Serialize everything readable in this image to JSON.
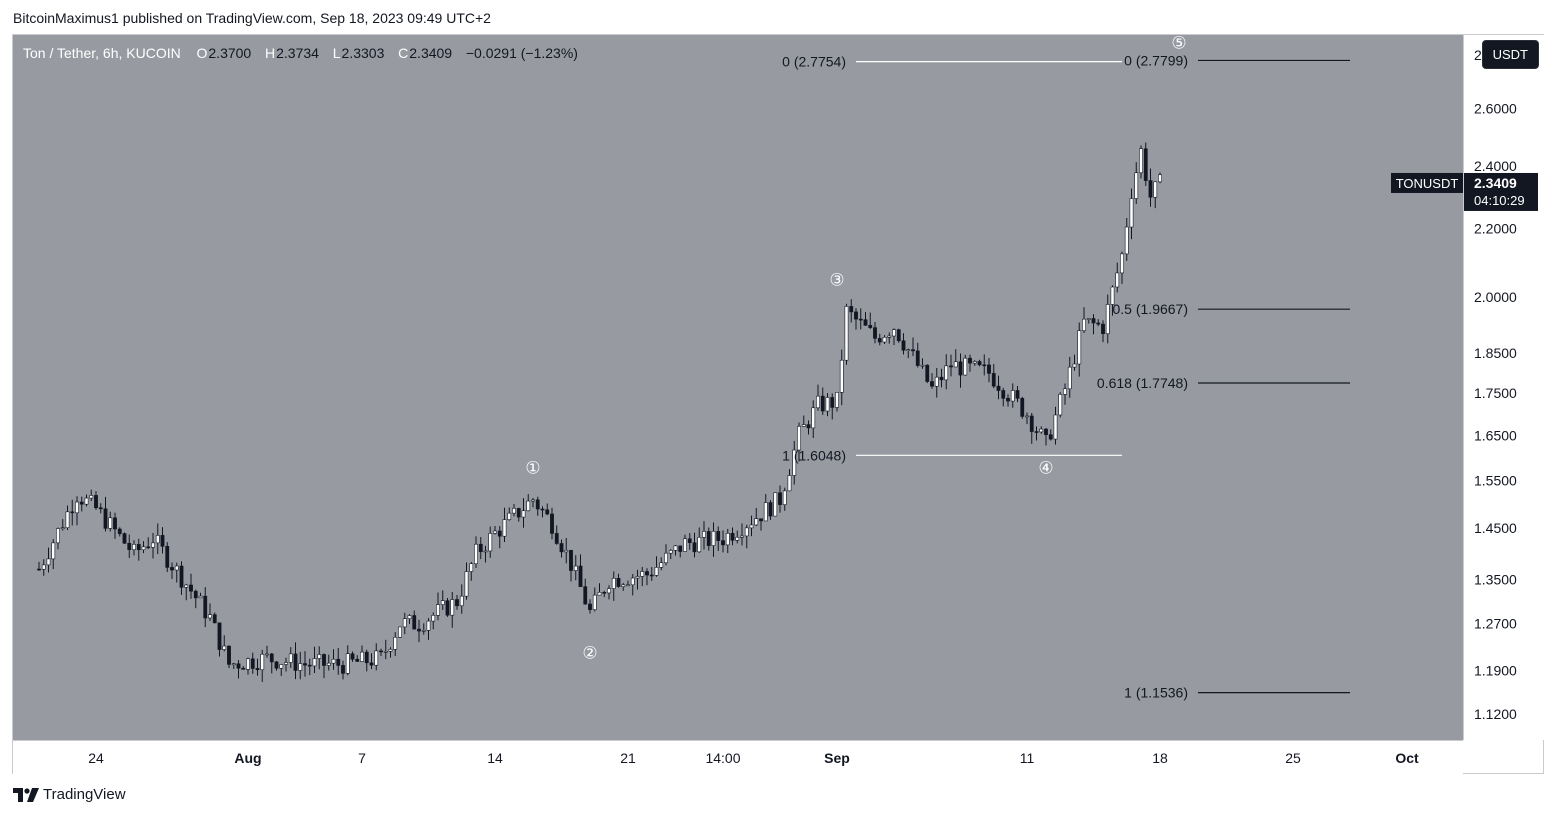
{
  "header": {
    "published_line": "BitcoinMaximus1 published on TradingView.com, Sep 18, 2023 09:49 UTC+2"
  },
  "legend": {
    "symbol": "Ton / Tether, 6h, KUCOIN",
    "o_label": "O",
    "o_value": "2.3700",
    "h_label": "H",
    "h_value": "2.3734",
    "l_label": "L",
    "l_value": "2.3303",
    "c_label": "C",
    "c_value": "2.3409",
    "change": "−0.0291 (−1.23%)"
  },
  "currency_button": "USDT",
  "price_badge": {
    "symbol": "TONUSDT",
    "price": "2.3409",
    "countdown": "04:10:29"
  },
  "footer": {
    "brand": "TradingView"
  },
  "colors": {
    "plot_bg": "#979aa1",
    "candle": "#ffffff",
    "candle_border": "#131722",
    "fib_line": "#131722",
    "label_dark": "#131722"
  },
  "chart_data": {
    "type": "candlestick",
    "ylabel_unit": "USDT",
    "y_scale": "log",
    "ylim": [
      1.08,
      2.88
    ],
    "y_ticks": [
      "2.8000",
      "2.6000",
      "2.4000",
      "2.2000",
      "2.0000",
      "1.8500",
      "1.7500",
      "1.6500",
      "1.5500",
      "1.4500",
      "1.3500",
      "1.2700",
      "1.1900",
      "1.1200"
    ],
    "x_ticks": [
      "24",
      "Aug",
      "7",
      "14",
      "21",
      "14:00",
      "Sep",
      "11",
      "18",
      "25",
      "Oct"
    ],
    "price_path": [
      {
        "date": "2023-07-21",
        "price": 1.37
      },
      {
        "date": "2023-07-23",
        "price": 1.52
      },
      {
        "date": "2023-07-24",
        "price": 1.49
      },
      {
        "date": "2023-07-26",
        "price": 1.4
      },
      {
        "date": "2023-07-27",
        "price": 1.43
      },
      {
        "date": "2023-07-29",
        "price": 1.33
      },
      {
        "date": "2023-07-30",
        "price": 1.28
      },
      {
        "date": "2023-07-31",
        "price": 1.2
      },
      {
        "date": "2023-08-02",
        "price": 1.21
      },
      {
        "date": "2023-08-04",
        "price": 1.2
      },
      {
        "date": "2023-08-06",
        "price": 1.2
      },
      {
        "date": "2023-08-08",
        "price": 1.21
      },
      {
        "date": "2023-08-09",
        "price": 1.27
      },
      {
        "date": "2023-08-10",
        "price": 1.27
      },
      {
        "date": "2023-08-12",
        "price": 1.31
      },
      {
        "date": "2023-08-13",
        "price": 1.4
      },
      {
        "date": "2023-08-14",
        "price": 1.44
      },
      {
        "date": "2023-08-16",
        "price": 1.51
      },
      {
        "date": "2023-08-17",
        "price": 1.46
      },
      {
        "date": "2023-08-18",
        "price": 1.38
      },
      {
        "date": "2023-08-19",
        "price": 1.29
      },
      {
        "date": "2023-08-20",
        "price": 1.35
      },
      {
        "date": "2023-08-22",
        "price": 1.36
      },
      {
        "date": "2023-08-24",
        "price": 1.42
      },
      {
        "date": "2023-08-26",
        "price": 1.43
      },
      {
        "date": "2023-08-28",
        "price": 1.48
      },
      {
        "date": "2023-08-29",
        "price": 1.51
      },
      {
        "date": "2023-08-30",
        "price": 1.65
      },
      {
        "date": "2023-08-31",
        "price": 1.72
      },
      {
        "date": "2023-09-01",
        "price": 1.73
      },
      {
        "date": "2023-09-01",
        "price": 1.96
      },
      {
        "date": "2023-09-03",
        "price": 1.89
      },
      {
        "date": "2023-09-04",
        "price": 1.92
      },
      {
        "date": "2023-09-06",
        "price": 1.76
      },
      {
        "date": "2023-09-07",
        "price": 1.82
      },
      {
        "date": "2023-09-09",
        "price": 1.8
      },
      {
        "date": "2023-09-11",
        "price": 1.7
      },
      {
        "date": "2023-09-12",
        "price": 1.63
      },
      {
        "date": "2023-09-13",
        "price": 1.76
      },
      {
        "date": "2023-09-14",
        "price": 1.93
      },
      {
        "date": "2023-09-15",
        "price": 1.92
      },
      {
        "date": "2023-09-16",
        "price": 2.12
      },
      {
        "date": "2023-09-16",
        "price": 2.32
      },
      {
        "date": "2023-09-17",
        "price": 2.45
      },
      {
        "date": "2023-09-17",
        "price": 2.3
      },
      {
        "date": "2023-09-18",
        "price": 2.34
      }
    ],
    "wave_labels": [
      {
        "label": "①",
        "date": "2023-08-16",
        "price": 1.578
      },
      {
        "label": "②",
        "date": "2023-08-19",
        "price": 1.22
      },
      {
        "label": "③",
        "date": "2023-09-01",
        "price": 2.05
      },
      {
        "label": "④",
        "date": "2023-09-12",
        "price": 1.578
      },
      {
        "label": "⑤",
        "date": "2023-09-19",
        "price": 2.85
      }
    ],
    "fib_sets": [
      {
        "levels": [
          {
            "label": "0 (2.7754)",
            "price": 2.7754
          },
          {
            "label": "1 (1.6048)",
            "price": 1.6048
          }
        ],
        "date_from": "2023-09-02",
        "date_to": "2023-09-16"
      },
      {
        "levels": [
          {
            "label": "0 (2.7799)",
            "price": 2.7799
          },
          {
            "label": "0.5 (1.9667)",
            "price": 1.9667
          },
          {
            "label": "0.618 (1.7748)",
            "price": 1.7748
          },
          {
            "label": "1 (1.1536)",
            "price": 1.1536
          }
        ],
        "date_from": "2023-09-20",
        "date_to": "2023-09-28"
      }
    ]
  }
}
